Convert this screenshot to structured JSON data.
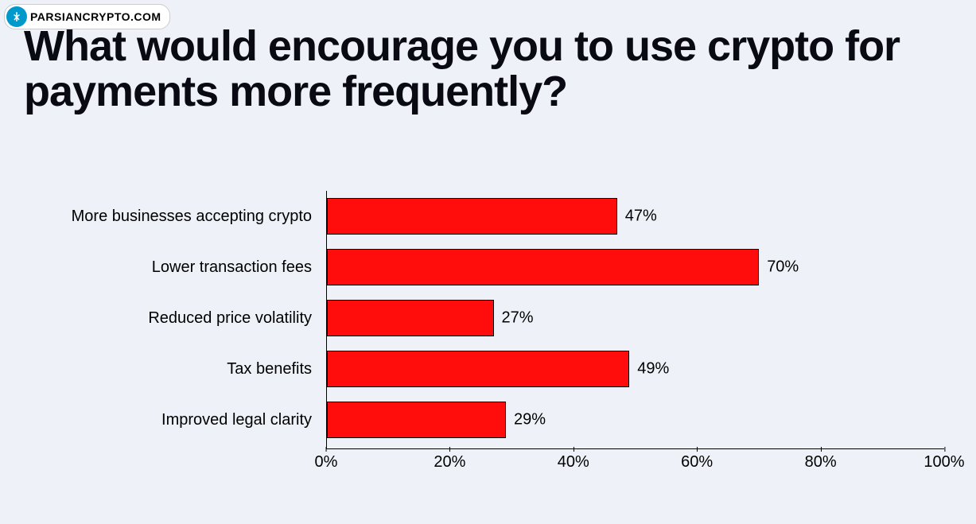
{
  "watermark": {
    "text": "PARSIANCRYPTO.COM",
    "logo_bg": "#0099cc"
  },
  "title": {
    "text": "What would encourage you to use crypto for payments more frequently?",
    "fontsize": 54,
    "color": "#0a0a14"
  },
  "chart": {
    "type": "bar-horizontal",
    "bar_color": "#ff0d0d",
    "bar_border_color": "#000000",
    "background_color": "#eef2f8",
    "label_fontsize": 20,
    "value_fontsize": 20,
    "xlim": [
      0,
      100
    ],
    "xtick_step": 20,
    "xtick_suffix": "%",
    "categories": [
      "More businesses accepting crypto",
      "Lower transaction fees",
      "Reduced price volatility",
      "Tax benefits",
      "Improved legal clarity"
    ],
    "values": [
      47,
      70,
      27,
      49,
      29
    ],
    "value_labels": [
      "47%",
      "70%",
      "27%",
      "49%",
      "29%"
    ]
  },
  "axis_ticks": [
    "0%",
    "20%",
    "40%",
    "60%",
    "80%",
    "100%"
  ]
}
